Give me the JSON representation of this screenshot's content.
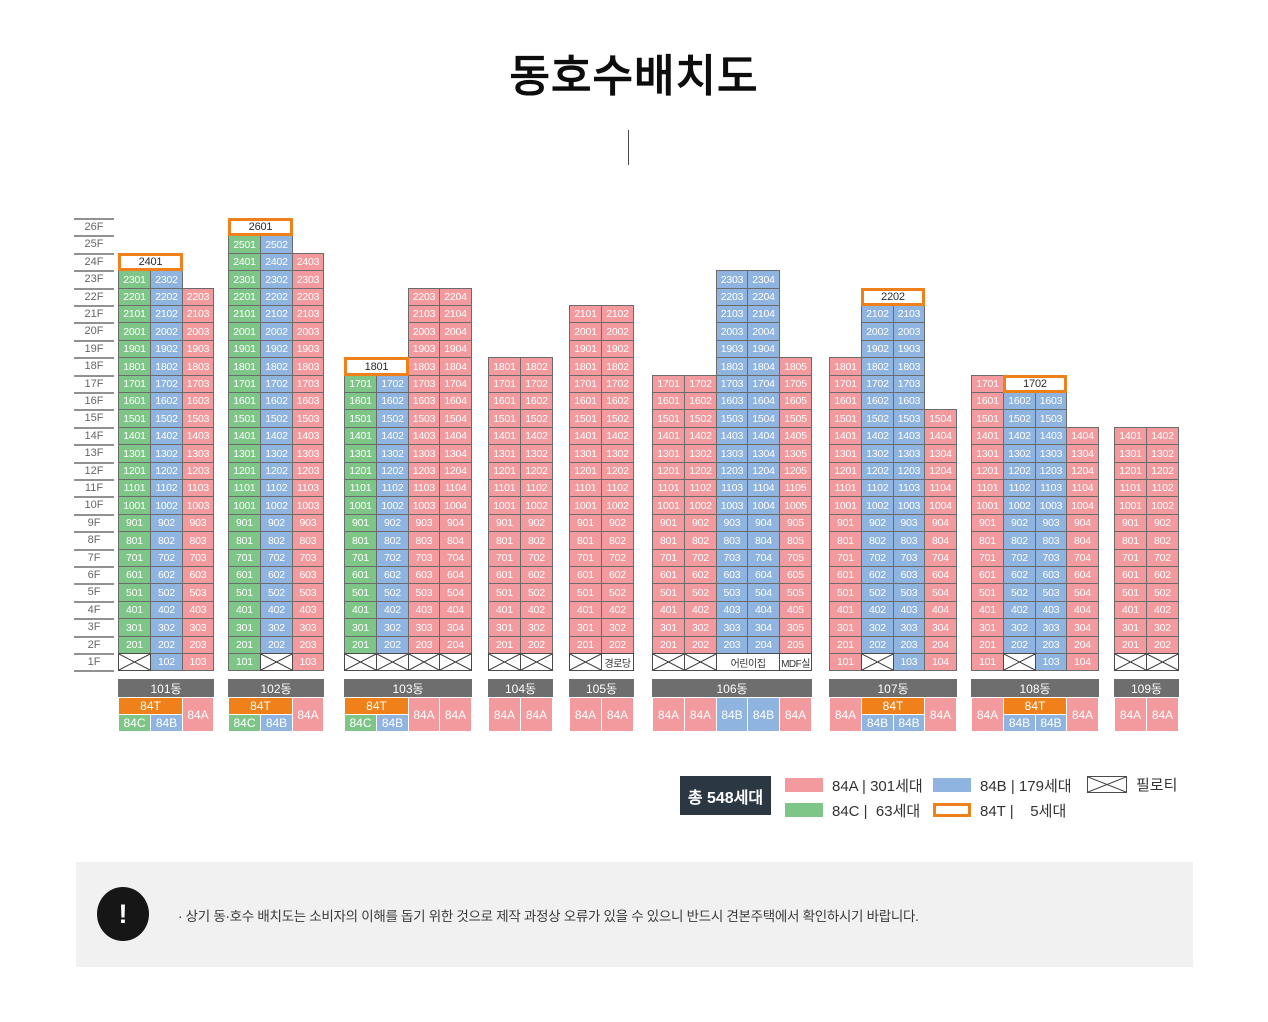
{
  "title": "동호수배치도",
  "floors": [
    "26F",
    "25F",
    "24F",
    "23F",
    "22F",
    "21F",
    "20F",
    "19F",
    "18F",
    "17F",
    "16F",
    "15F",
    "14F",
    "13F",
    "12F",
    "11F",
    "10F",
    "9F",
    "8F",
    "7F",
    "6F",
    "5F",
    "4F",
    "3F",
    "2F",
    "1F"
  ],
  "colors": {
    "84A": "#F29A9E",
    "84B": "#8FB4E0",
    "84C": "#7EC687",
    "84T": "#F0801A",
    "cellBorder": "#6B6B6B",
    "pilotiLine": "#3C3C3C",
    "barBg": "#6E6E6E",
    "totalBoxBg": "#2B3844",
    "noticeBg": "#F1F1F1"
  },
  "buildings": [
    {
      "name": "101동",
      "cols": 3,
      "stacks": [
        {
          "col": 1,
          "type": "84C",
          "from": 2,
          "to": 23
        },
        {
          "col": 2,
          "type": "84B",
          "from": 1,
          "to": 23
        },
        {
          "col": 3,
          "type": "84A",
          "from": 1,
          "to": 22
        }
      ],
      "boxed": [
        {
          "floor": 24,
          "col": 1,
          "span": 2,
          "label": "2401"
        }
      ],
      "piloti": [
        1
      ],
      "named": [],
      "footer": [
        {
          "label": "84T",
          "type": "84T",
          "col": 1,
          "span": 2,
          "row": "top"
        },
        {
          "label": "84C",
          "type": "84C",
          "col": 1,
          "span": 1,
          "row": "bottom"
        },
        {
          "label": "84B",
          "type": "84B",
          "col": 2,
          "span": 1,
          "row": "bottom"
        },
        {
          "label": "84A",
          "type": "84A",
          "col": 3,
          "span": 1,
          "row": "full"
        }
      ]
    },
    {
      "name": "102동",
      "cols": 3,
      "stacks": [
        {
          "col": 1,
          "type": "84C",
          "from": 1,
          "to": 25
        },
        {
          "col": 2,
          "type": "84B",
          "from": 2,
          "to": 25
        },
        {
          "col": 3,
          "type": "84A",
          "from": 1,
          "to": 24
        }
      ],
      "boxed": [
        {
          "floor": 26,
          "col": 1,
          "span": 2,
          "label": "2601"
        }
      ],
      "piloti": [
        2
      ],
      "named": [],
      "footer": [
        {
          "label": "84T",
          "type": "84T",
          "col": 1,
          "span": 2,
          "row": "top"
        },
        {
          "label": "84C",
          "type": "84C",
          "col": 1,
          "span": 1,
          "row": "bottom"
        },
        {
          "label": "84B",
          "type": "84B",
          "col": 2,
          "span": 1,
          "row": "bottom"
        },
        {
          "label": "84A",
          "type": "84A",
          "col": 3,
          "span": 1,
          "row": "full"
        }
      ]
    },
    {
      "name": "103동",
      "cols": 4,
      "stacks": [
        {
          "col": 1,
          "type": "84C",
          "from": 2,
          "to": 17
        },
        {
          "col": 2,
          "type": "84B",
          "from": 2,
          "to": 17
        },
        {
          "col": 3,
          "type": "84A",
          "from": 2,
          "to": 22
        },
        {
          "col": 4,
          "type": "84A",
          "from": 2,
          "to": 22
        }
      ],
      "boxed": [
        {
          "floor": 18,
          "col": 1,
          "span": 2,
          "label": "1801"
        }
      ],
      "piloti": [
        1,
        2,
        3,
        4
      ],
      "named": [],
      "footer": [
        {
          "label": "84T",
          "type": "84T",
          "col": 1,
          "span": 2,
          "row": "top"
        },
        {
          "label": "84C",
          "type": "84C",
          "col": 1,
          "span": 1,
          "row": "bottom"
        },
        {
          "label": "84B",
          "type": "84B",
          "col": 2,
          "span": 1,
          "row": "bottom"
        },
        {
          "label": "84A",
          "type": "84A",
          "col": 3,
          "span": 1,
          "row": "full"
        },
        {
          "label": "84A",
          "type": "84A",
          "col": 4,
          "span": 1,
          "row": "full"
        }
      ]
    },
    {
      "name": "104동",
      "cols": 2,
      "stacks": [
        {
          "col": 1,
          "type": "84A",
          "from": 2,
          "to": 18
        },
        {
          "col": 2,
          "type": "84A",
          "from": 2,
          "to": 18
        }
      ],
      "boxed": [],
      "piloti": [
        1,
        2
      ],
      "named": [],
      "footer": [
        {
          "label": "84A",
          "type": "84A",
          "col": 1,
          "span": 1,
          "row": "full"
        },
        {
          "label": "84A",
          "type": "84A",
          "col": 2,
          "span": 1,
          "row": "full"
        }
      ]
    },
    {
      "name": "105동",
      "cols": 2,
      "stacks": [
        {
          "col": 1,
          "type": "84A",
          "from": 2,
          "to": 21
        },
        {
          "col": 2,
          "type": "84A",
          "from": 2,
          "to": 21
        }
      ],
      "boxed": [],
      "piloti": [
        1
      ],
      "named": [
        {
          "col": 2,
          "span": 1,
          "label": "경로당"
        }
      ],
      "footer": [
        {
          "label": "84A",
          "type": "84A",
          "col": 1,
          "span": 1,
          "row": "full"
        },
        {
          "label": "84A",
          "type": "84A",
          "col": 2,
          "span": 1,
          "row": "full"
        }
      ]
    },
    {
      "name": "106동",
      "cols": 5,
      "stacks": [
        {
          "col": 1,
          "type": "84A",
          "from": 2,
          "to": 17
        },
        {
          "col": 2,
          "type": "84A",
          "from": 2,
          "to": 17
        },
        {
          "col": 3,
          "type": "84B",
          "from": 2,
          "to": 23
        },
        {
          "col": 4,
          "type": "84B",
          "from": 2,
          "to": 23
        },
        {
          "col": 5,
          "type": "84A",
          "from": 2,
          "to": 18
        }
      ],
      "boxed": [],
      "piloti": [
        1,
        2
      ],
      "named": [
        {
          "col": 3,
          "span": 2,
          "label": "어린이집"
        },
        {
          "col": 5,
          "span": 1,
          "label": "MDF실"
        }
      ],
      "footer": [
        {
          "label": "84A",
          "type": "84A",
          "col": 1,
          "span": 1,
          "row": "full"
        },
        {
          "label": "84A",
          "type": "84A",
          "col": 2,
          "span": 1,
          "row": "full"
        },
        {
          "label": "84B",
          "type": "84B",
          "col": 3,
          "span": 1,
          "row": "full"
        },
        {
          "label": "84B",
          "type": "84B",
          "col": 4,
          "span": 1,
          "row": "full"
        },
        {
          "label": "84A",
          "type": "84A",
          "col": 5,
          "span": 1,
          "row": "full"
        }
      ]
    },
    {
      "name": "107동",
      "cols": 4,
      "stacks": [
        {
          "col": 1,
          "type": "84A",
          "from": 1,
          "to": 18
        },
        {
          "col": 2,
          "type": "84B",
          "from": 2,
          "to": 21
        },
        {
          "col": 3,
          "type": "84B",
          "from": 1,
          "to": 21
        },
        {
          "col": 4,
          "type": "84A",
          "from": 1,
          "to": 15
        }
      ],
      "boxed": [
        {
          "floor": 22,
          "col": 2,
          "span": 2,
          "label": "2202"
        }
      ],
      "piloti": [
        2
      ],
      "named": [],
      "footer": [
        {
          "label": "84A",
          "type": "84A",
          "col": 1,
          "span": 1,
          "row": "full"
        },
        {
          "label": "84T",
          "type": "84T",
          "col": 2,
          "span": 2,
          "row": "top"
        },
        {
          "label": "84B",
          "type": "84B",
          "col": 2,
          "span": 1,
          "row": "bottom"
        },
        {
          "label": "84B",
          "type": "84B",
          "col": 3,
          "span": 1,
          "row": "bottom"
        },
        {
          "label": "84A",
          "type": "84A",
          "col": 4,
          "span": 1,
          "row": "full"
        }
      ]
    },
    {
      "name": "108동",
      "cols": 4,
      "stacks": [
        {
          "col": 1,
          "type": "84A",
          "from": 1,
          "to": 17
        },
        {
          "col": 2,
          "type": "84B",
          "from": 2,
          "to": 16
        },
        {
          "col": 3,
          "type": "84B",
          "from": 1,
          "to": 16
        },
        {
          "col": 4,
          "type": "84A",
          "from": 1,
          "to": 14
        }
      ],
      "boxed": [
        {
          "floor": 17,
          "col": 2,
          "span": 2,
          "label": "1702"
        }
      ],
      "piloti": [
        2
      ],
      "named": [],
      "footer": [
        {
          "label": "84A",
          "type": "84A",
          "col": 1,
          "span": 1,
          "row": "full"
        },
        {
          "label": "84T",
          "type": "84T",
          "col": 2,
          "span": 2,
          "row": "top"
        },
        {
          "label": "84B",
          "type": "84B",
          "col": 2,
          "span": 1,
          "row": "bottom"
        },
        {
          "label": "84B",
          "type": "84B",
          "col": 3,
          "span": 1,
          "row": "bottom"
        },
        {
          "label": "84A",
          "type": "84A",
          "col": 4,
          "span": 1,
          "row": "full"
        }
      ]
    },
    {
      "name": "109동",
      "cols": 2,
      "stacks": [
        {
          "col": 1,
          "type": "84A",
          "from": 2,
          "to": 14
        },
        {
          "col": 2,
          "type": "84A",
          "from": 2,
          "to": 14
        }
      ],
      "boxed": [],
      "piloti": [
        1,
        2
      ],
      "named": [],
      "footer": [
        {
          "label": "84A",
          "type": "84A",
          "col": 1,
          "span": 1,
          "row": "full"
        },
        {
          "label": "84A",
          "type": "84A",
          "col": 2,
          "span": 1,
          "row": "full"
        }
      ]
    }
  ],
  "legend": {
    "total": "총 548세대",
    "items": [
      {
        "type": "84A",
        "label": "84A | 301세대"
      },
      {
        "type": "84B",
        "label": "84B | 179세대"
      },
      {
        "type": "piloti",
        "label": "필로티"
      },
      {
        "type": "84C",
        "label": "84C |  63세대"
      },
      {
        "type": "84T",
        "label": "84T |    5세대"
      }
    ]
  },
  "notice": {
    "icon": "!",
    "text": "· 상기 동·호수 배치도는 소비자의 이해를 돕기 위한 것으로 제작 과정상 오류가 있을 수 있으니 반드시 견본주택에서 확인하시기 바랍니다."
  }
}
